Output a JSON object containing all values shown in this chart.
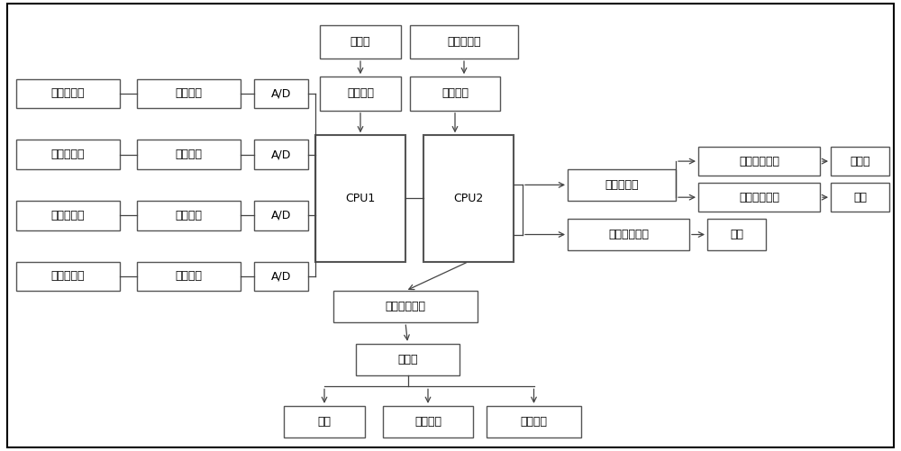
{
  "background_color": "#ffffff",
  "border_color": "#000000",
  "box_facecolor": "#ffffff",
  "box_edgecolor": "#555555",
  "text_color": "#000000",
  "font_size": 9,
  "boxes": {
    "显示器": [
      0.355,
      0.87,
      0.09,
      0.075
    ],
    "体重传感器": [
      0.455,
      0.87,
      0.12,
      0.075
    ],
    "显示驱动": [
      0.355,
      0.755,
      0.09,
      0.075
    ],
    "体重采集": [
      0.455,
      0.755,
      0.1,
      0.075
    ],
    "CPU1": [
      0.35,
      0.42,
      0.1,
      0.28
    ],
    "CPU2": [
      0.47,
      0.42,
      0.1,
      0.28
    ],
    "电机驱动器": [
      0.63,
      0.555,
      0.12,
      0.07
    ],
    "静音电动推杆1": [
      0.775,
      0.61,
      0.135,
      0.065
    ],
    "俯仰角": [
      0.922,
      0.61,
      0.065,
      0.065
    ],
    "静音电动推杆2": [
      0.775,
      0.53,
      0.135,
      0.065
    ],
    "高低": [
      0.922,
      0.53,
      0.065,
      0.065
    ],
    "电池管理模块": [
      0.63,
      0.445,
      0.135,
      0.07
    ],
    "电池": [
      0.785,
      0.445,
      0.065,
      0.07
    ],
    "无线数据连接": [
      0.37,
      0.285,
      0.16,
      0.07
    ],
    "服务器": [
      0.395,
      0.168,
      0.115,
      0.07
    ],
    "电脑": [
      0.315,
      0.03,
      0.09,
      0.07
    ],
    "平板电脑": [
      0.425,
      0.03,
      0.1,
      0.07
    ],
    "智能手机": [
      0.54,
      0.03,
      0.105,
      0.07
    ],
    "体温传感器": [
      0.018,
      0.76,
      0.115,
      0.065
    ],
    "脉搏传感器": [
      0.018,
      0.625,
      0.115,
      0.065
    ],
    "血氧传感器": [
      0.018,
      0.49,
      0.115,
      0.065
    ],
    "黄疸传感器": [
      0.018,
      0.355,
      0.115,
      0.065
    ],
    "放大整形1": [
      0.152,
      0.76,
      0.115,
      0.065
    ],
    "放大整形2": [
      0.152,
      0.625,
      0.115,
      0.065
    ],
    "放大整形3": [
      0.152,
      0.49,
      0.115,
      0.065
    ],
    "放大整形4": [
      0.152,
      0.355,
      0.115,
      0.065
    ],
    "AD1": [
      0.282,
      0.76,
      0.06,
      0.065
    ],
    "AD2": [
      0.282,
      0.625,
      0.06,
      0.065
    ],
    "AD3": [
      0.282,
      0.49,
      0.06,
      0.065
    ],
    "AD4": [
      0.282,
      0.355,
      0.06,
      0.065
    ]
  },
  "labels": {
    "显示器": "显示器",
    "体重传感器": "体重传感器",
    "显示驱动": "显示驱动",
    "体重采集": "体重采集",
    "CPU1": "CPU1",
    "CPU2": "CPU2",
    "电机驱动器": "电机驱动器",
    "静音电动推杆1": "静音电动推杆",
    "俯仰角": "俯仰角",
    "静音电动推杆2": "静音电动推杆",
    "高低": "高低",
    "电池管理模块": "电池管理模块",
    "电池": "电池",
    "无线数据连接": "无线数据连接",
    "服务器": "服务器",
    "电脑": "电脑",
    "平板电脑": "平板电脑",
    "智能手机": "智能手机",
    "体温传感器": "体温传感器",
    "脉搏传感器": "脉搏传感器",
    "血氧传感器": "血氧传感器",
    "黄疸传感器": "黄疸传感器",
    "放大整形1": "放大整形",
    "放大整形2": "放大整形",
    "放大整形3": "放大整形",
    "放大整形4": "放大整形",
    "AD1": "A/D",
    "AD2": "A/D",
    "AD3": "A/D",
    "AD4": "A/D"
  },
  "large_boxes": [
    "CPU1",
    "CPU2"
  ],
  "line_color": "#444444",
  "line_width": 0.9
}
